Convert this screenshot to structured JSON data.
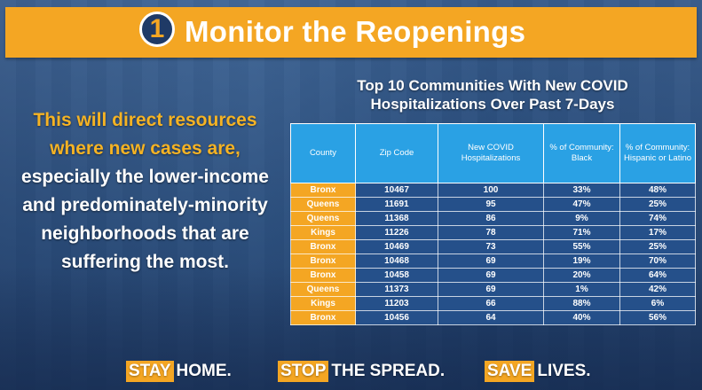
{
  "banner": {
    "step_number": "1",
    "title": "Monitor the Reopenings"
  },
  "left_text": {
    "highlight": "This will direct resources where new cases are,",
    "rest": "especially the lower-income and predominately-minority neighborhoods that are suffering the most."
  },
  "table": {
    "title_line1": "Top 10 Communities With New COVID",
    "title_line2": "Hospitalizations Over Past 7-Days",
    "headers": [
      "County",
      "Zip Code",
      "New COVID Hospitalizations",
      "% of Community: Black",
      "% of Community: Hispanic or Latino"
    ],
    "rows": [
      [
        "Bronx",
        "10467",
        "100",
        "33%",
        "48%"
      ],
      [
        "Queens",
        "11691",
        "95",
        "47%",
        "25%"
      ],
      [
        "Queens",
        "11368",
        "86",
        "9%",
        "74%"
      ],
      [
        "Kings",
        "11226",
        "78",
        "71%",
        "17%"
      ],
      [
        "Bronx",
        "10469",
        "73",
        "55%",
        "25%"
      ],
      [
        "Bronx",
        "10468",
        "69",
        "19%",
        "70%"
      ],
      [
        "Bronx",
        "10458",
        "69",
        "20%",
        "64%"
      ],
      [
        "Queens",
        "11373",
        "69",
        "1%",
        "42%"
      ],
      [
        "Kings",
        "11203",
        "66",
        "88%",
        "6%"
      ],
      [
        "Bronx",
        "10456",
        "64",
        "40%",
        "56%"
      ]
    ]
  },
  "footer": {
    "items": [
      {
        "tag": "STAY",
        "text": "HOME."
      },
      {
        "tag": "STOP",
        "text": "THE SPREAD."
      },
      {
        "tag": "SAVE",
        "text": "LIVES."
      }
    ]
  },
  "colors": {
    "accent_orange": "#f4a623",
    "header_blue": "#2aa1e4",
    "cell_blue": "#25508a",
    "circle_navy": "#1f3a66"
  }
}
